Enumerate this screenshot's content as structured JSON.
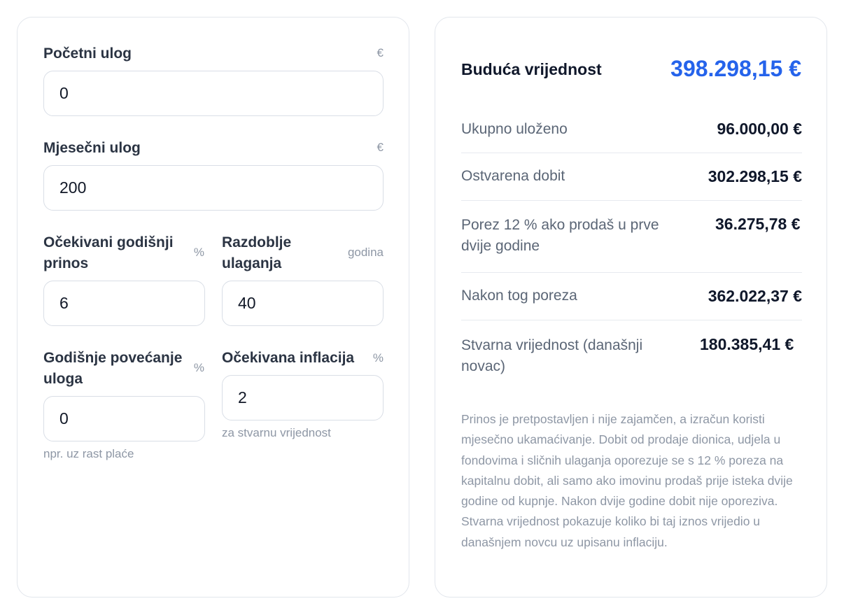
{
  "form": {
    "initial": {
      "label": "Početni ulog",
      "unit": "€",
      "value": "0"
    },
    "monthly": {
      "label": "Mjesečni ulog",
      "unit": "€",
      "value": "200"
    },
    "return_rate": {
      "label": "Očekivani godišnji prinos",
      "unit": "%",
      "value": "6"
    },
    "period": {
      "label": "Razdoblje ulaganja",
      "unit": "godina",
      "value": "40"
    },
    "increase": {
      "label": "Godišnje povećanje uloga",
      "unit": "%",
      "value": "0",
      "hint": "npr. uz rast plaće"
    },
    "inflation": {
      "label": "Očekivana inflacija",
      "unit": "%",
      "value": "2",
      "hint": "za stvarnu vrijednost"
    }
  },
  "results": {
    "future_value_label": "Buduća vrijednost",
    "future_value": "398.298,15 €",
    "rows": [
      {
        "label": "Ukupno uloženo",
        "value": "96.000,00 €"
      },
      {
        "label": "Ostvarena dobit",
        "value": "302.298,15 €"
      },
      {
        "label": "Porez 12 % ako prodaš u prve dvije godine",
        "value": "36.275,78 €"
      },
      {
        "label": "Nakon tog poreza",
        "value": "362.022,37 €"
      },
      {
        "label": "Stvarna vrijednost (današnji novac)",
        "value": "180.385,41 €"
      }
    ],
    "note": "Prinos je pretpostavljen i nije zajamčen, a izračun koristi mjesečno ukamaćivanje. Dobit od prodaje dionica, udjela u fondovima i sličnih ulaganja oporezuje se s 12 % poreza na kapitalnu dobit, ali samo ako imovinu prodaš prije isteka dvije godine od kupnje. Nakon dvije godine dobit nije oporeziva. Stvarna vrijednost pokazuje koliko bi taj iznos vrijedio u današnjem novcu uz upisanu inflaciju."
  },
  "colors": {
    "accent": "#2563eb",
    "text": "#0f172a",
    "muted": "#8e97a5",
    "border": "#e2e6ec"
  }
}
